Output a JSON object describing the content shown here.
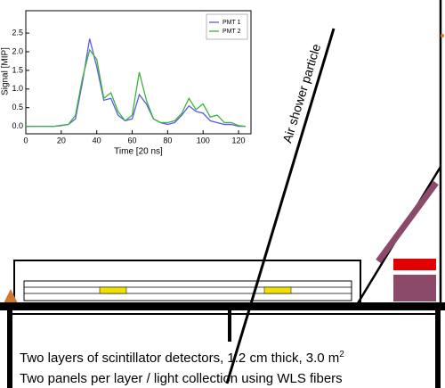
{
  "chart_data": {
    "type": "line",
    "x_label": "Time [20 ns]",
    "y_label": "Signal [MIP]",
    "x": [
      0,
      4,
      8,
      12,
      16,
      20,
      24,
      28,
      32,
      36,
      40,
      44,
      48,
      52,
      56,
      60,
      64,
      68,
      72,
      76,
      80,
      84,
      88,
      92,
      96,
      100,
      104,
      108,
      112,
      116,
      120,
      124
    ],
    "series": [
      {
        "name": "PMT 1",
        "color": "#5a5ae6",
        "values": [
          0.0,
          0.0,
          0.0,
          0.0,
          0.0,
          0.02,
          0.05,
          0.2,
          1.2,
          2.35,
          1.6,
          0.7,
          0.75,
          0.3,
          0.15,
          0.2,
          0.85,
          0.6,
          0.2,
          0.1,
          0.05,
          0.1,
          0.3,
          0.55,
          0.4,
          0.35,
          0.15,
          0.1,
          0.05,
          0.05,
          0.0,
          0.0
        ]
      },
      {
        "name": "PMT 2",
        "color": "#3cb43c",
        "values": [
          0.0,
          0.0,
          0.0,
          0.0,
          0.0,
          0.03,
          0.05,
          0.3,
          1.3,
          2.05,
          1.8,
          0.75,
          0.9,
          0.4,
          0.15,
          0.3,
          1.45,
          0.7,
          0.2,
          0.1,
          0.1,
          0.15,
          0.35,
          0.75,
          0.45,
          0.6,
          0.25,
          0.3,
          0.1,
          0.1,
          0.02,
          0.0
        ]
      }
    ],
    "xlim": [
      0,
      127
    ],
    "ylim": [
      -0.2,
      3.1
    ],
    "xticks": [
      0,
      20,
      40,
      60,
      80,
      100,
      120
    ],
    "yticks": [
      {
        "value": 0,
        "label": "0.0"
      },
      0.5,
      {
        "value": 1,
        "label": "1.0"
      },
      1.5,
      {
        "value": 2,
        "label": "2.0"
      },
      2.5
    ],
    "legend": "upper right"
  },
  "diagram": {
    "particle_label": "Air shower particle",
    "caption_lines": [
      {
        "text": "Two layers of scintillator detectors, 1.2 cm thick, 3.0 m",
        "superscript": "2"
      },
      {
        "text": "Two panels per layer / light collection using WLS fibers"
      }
    ]
  }
}
